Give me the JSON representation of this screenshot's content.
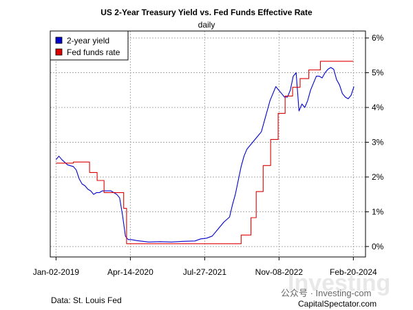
{
  "chart_data": {
    "type": "line",
    "title": "US 2-Year Treasury Yield vs. Fed Funds Effective Rate",
    "subtitle": "daily",
    "x_ticks": [
      "Jan-02-2019",
      "Apr-14-2020",
      "Jul-27-2021",
      "Nov-08-2022",
      "Feb-20-2024"
    ],
    "x_tick_years": [
      2019.0,
      2020.285,
      2021.57,
      2022.855,
      2024.14
    ],
    "xlim": [
      2018.9,
      2024.35
    ],
    "ylim": [
      -0.3,
      6.2
    ],
    "y_ticks": [
      0,
      1,
      2,
      3,
      4,
      5,
      6
    ],
    "y_tick_labels": [
      "0%",
      "1%",
      "2%",
      "3%",
      "4%",
      "5%",
      "6%"
    ],
    "grid": true,
    "legend_position": "top-left",
    "series": [
      {
        "name": "2-year yield",
        "color": "#0000cc",
        "style": "line",
        "x": [
          2019.0,
          2019.05,
          2019.1,
          2019.2,
          2019.3,
          2019.35,
          2019.4,
          2019.45,
          2019.5,
          2019.55,
          2019.6,
          2019.65,
          2019.7,
          2019.75,
          2019.8,
          2019.85,
          2019.9,
          2019.95,
          2020.0,
          2020.05,
          2020.1,
          2020.15,
          2020.2,
          2020.22,
          2020.25,
          2020.3,
          2020.4,
          2020.5,
          2020.6,
          2020.8,
          2021.0,
          2021.2,
          2021.4,
          2021.5,
          2021.6,
          2021.7,
          2021.8,
          2021.9,
          2022.0,
          2022.05,
          2022.1,
          2022.15,
          2022.2,
          2022.25,
          2022.3,
          2022.35,
          2022.4,
          2022.45,
          2022.5,
          2022.55,
          2022.6,
          2022.65,
          2022.7,
          2022.75,
          2022.8,
          2022.85,
          2022.9,
          2022.95,
          2023.0,
          2023.05,
          2023.1,
          2023.15,
          2023.2,
          2023.25,
          2023.3,
          2023.35,
          2023.4,
          2023.45,
          2023.5,
          2023.55,
          2023.6,
          2023.65,
          2023.7,
          2023.75,
          2023.8,
          2023.85,
          2023.9,
          2023.95,
          2024.0,
          2024.05,
          2024.1,
          2024.15
        ],
        "y": [
          2.5,
          2.6,
          2.5,
          2.35,
          2.3,
          2.2,
          1.95,
          1.8,
          1.75,
          1.65,
          1.6,
          1.5,
          1.55,
          1.55,
          1.6,
          1.6,
          1.6,
          1.6,
          1.55,
          1.5,
          1.4,
          0.9,
          0.3,
          0.25,
          0.2,
          0.2,
          0.17,
          0.15,
          0.13,
          0.14,
          0.13,
          0.15,
          0.16,
          0.22,
          0.24,
          0.3,
          0.5,
          0.7,
          0.85,
          1.2,
          1.5,
          1.9,
          2.3,
          2.6,
          2.8,
          2.9,
          3.0,
          3.1,
          3.2,
          3.3,
          3.6,
          3.9,
          4.2,
          4.4,
          4.6,
          4.5,
          4.4,
          4.3,
          4.3,
          4.5,
          4.9,
          5.0,
          3.9,
          4.1,
          4.0,
          4.2,
          4.5,
          4.7,
          4.9,
          4.9,
          4.85,
          5.0,
          5.1,
          5.15,
          5.1,
          4.8,
          4.65,
          4.4,
          4.3,
          4.25,
          4.35,
          4.6
        ]
      },
      {
        "name": "Fed funds rate",
        "color": "#dd0000",
        "style": "step",
        "x": [
          2019.0,
          2019.3,
          2019.58,
          2019.71,
          2019.83,
          2020.17,
          2020.22,
          2022.2,
          2022.37,
          2022.46,
          2022.58,
          2022.71,
          2022.84,
          2022.96,
          2023.09,
          2023.22,
          2023.37,
          2023.57,
          2024.14
        ],
        "y": [
          2.4,
          2.43,
          2.13,
          1.9,
          1.55,
          1.1,
          0.08,
          0.33,
          0.83,
          1.58,
          2.33,
          3.08,
          3.83,
          4.33,
          4.58,
          4.83,
          5.08,
          5.33,
          5.33
        ]
      }
    ],
    "source_note": "Data: St. Louis Fed",
    "credit": "CapitalSpectator.com",
    "watermark_text": "公众号 · Investing-com",
    "watermark_logo": "Investing"
  }
}
